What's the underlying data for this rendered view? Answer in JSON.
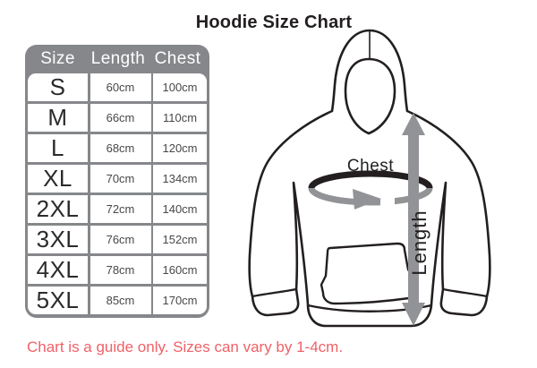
{
  "title": "Hoodie Size Chart",
  "note": "Chart is a guide only. Sizes can vary by 1-4cm.",
  "table": {
    "headers": [
      "Size",
      "Length",
      "Chest"
    ],
    "rows": [
      {
        "size": "S",
        "length": "60cm",
        "chest": "100cm"
      },
      {
        "size": "M",
        "length": "66cm",
        "chest": "110cm"
      },
      {
        "size": "L",
        "length": "68cm",
        "chest": "120cm"
      },
      {
        "size": "XL",
        "length": "70cm",
        "chest": "134cm"
      },
      {
        "size": "2XL",
        "length": "72cm",
        "chest": "140cm"
      },
      {
        "size": "3XL",
        "length": "76cm",
        "chest": "152cm"
      },
      {
        "size": "4XL",
        "length": "78cm",
        "chest": "160cm"
      },
      {
        "size": "5XL",
        "length": "85cm",
        "chest": "170cm"
      }
    ]
  },
  "diagram": {
    "chest_label": "Chest",
    "length_label": "Length"
  },
  "colors": {
    "table-gray": "#85878a",
    "arrow-gray": "#919396",
    "note-red": "#ef6168",
    "ink": "#231f20"
  }
}
